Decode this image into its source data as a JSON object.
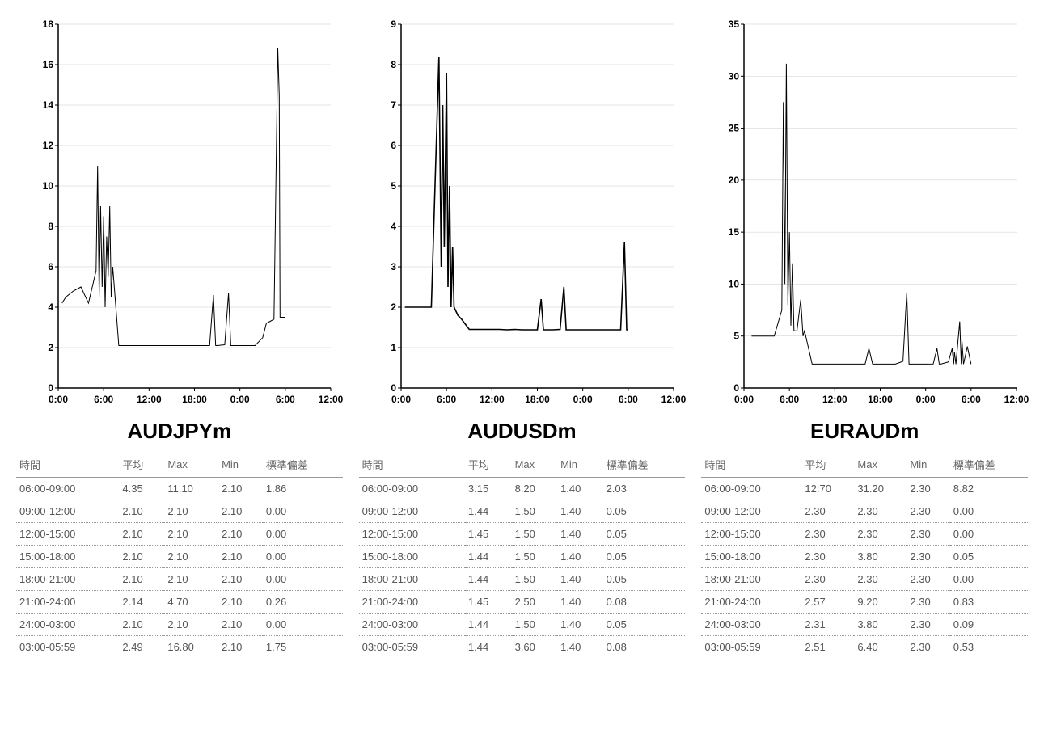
{
  "layout": {
    "background": "#ffffff",
    "text_color": "#000000",
    "muted_text": "#666666",
    "cell_text": "#555555",
    "dotted_border": "#999999"
  },
  "panels": [
    {
      "title": "AUDJPYm",
      "chart": {
        "type": "line",
        "ylim": [
          0,
          18
        ],
        "yticks": [
          0,
          2,
          4,
          6,
          8,
          10,
          12,
          14,
          16,
          18
        ],
        "xticks": [
          "0:00",
          "6:00",
          "12:00",
          "18:00",
          "0:00",
          "6:00",
          "12:00"
        ],
        "xrange": [
          0,
          36
        ],
        "grid_color": "#cccccc",
        "axis_color": "#000000",
        "line_color": "#000000",
        "line_width": 1,
        "tick_fontsize": 12,
        "tick_fontweight": "bold",
        "series": [
          [
            0.5,
            4.2
          ],
          [
            1,
            4.5
          ],
          [
            2,
            4.8
          ],
          [
            3,
            5.0
          ],
          [
            4,
            4.2
          ],
          [
            5,
            5.8
          ],
          [
            5.2,
            11.0
          ],
          [
            5.4,
            4.5
          ],
          [
            5.6,
            9.0
          ],
          [
            5.8,
            5.0
          ],
          [
            6,
            8.5
          ],
          [
            6.2,
            4.0
          ],
          [
            6.4,
            7.5
          ],
          [
            6.6,
            5.5
          ],
          [
            6.8,
            9.0
          ],
          [
            7,
            4.5
          ],
          [
            7.2,
            6.0
          ],
          [
            8,
            2.1
          ],
          [
            9,
            2.1
          ],
          [
            10,
            2.1
          ],
          [
            11,
            2.1
          ],
          [
            12,
            2.1
          ],
          [
            13,
            2.1
          ],
          [
            14,
            2.1
          ],
          [
            15,
            2.1
          ],
          [
            16,
            2.1
          ],
          [
            17,
            2.1
          ],
          [
            18,
            2.1
          ],
          [
            19,
            2.1
          ],
          [
            20,
            2.1
          ],
          [
            20.5,
            4.6
          ],
          [
            20.8,
            2.1
          ],
          [
            21,
            2.1
          ],
          [
            22,
            2.14
          ],
          [
            22.5,
            4.7
          ],
          [
            22.8,
            2.1
          ],
          [
            23,
            2.1
          ],
          [
            24,
            2.1
          ],
          [
            25,
            2.1
          ],
          [
            26,
            2.1
          ],
          [
            27,
            2.49
          ],
          [
            27.5,
            3.2
          ],
          [
            28,
            3.3
          ],
          [
            28.5,
            3.4
          ],
          [
            29,
            16.8
          ],
          [
            29.2,
            14.5
          ],
          [
            29.3,
            3.5
          ],
          [
            30,
            3.5
          ]
        ]
      },
      "table": {
        "columns": [
          "時間",
          "平均",
          "Max",
          "Min",
          "標準偏差"
        ],
        "rows": [
          [
            "06:00-09:00",
            "4.35",
            "11.10",
            "2.10",
            "1.86"
          ],
          [
            "09:00-12:00",
            "2.10",
            "2.10",
            "2.10",
            "0.00"
          ],
          [
            "12:00-15:00",
            "2.10",
            "2.10",
            "2.10",
            "0.00"
          ],
          [
            "15:00-18:00",
            "2.10",
            "2.10",
            "2.10",
            "0.00"
          ],
          [
            "18:00-21:00",
            "2.10",
            "2.10",
            "2.10",
            "0.00"
          ],
          [
            "21:00-24:00",
            "2.14",
            "4.70",
            "2.10",
            "0.26"
          ],
          [
            "24:00-03:00",
            "2.10",
            "2.10",
            "2.10",
            "0.00"
          ],
          [
            "03:00-05:59",
            "2.49",
            "16.80",
            "2.10",
            "1.75"
          ]
        ]
      }
    },
    {
      "title": "AUDUSDm",
      "chart": {
        "type": "line",
        "ylim": [
          0,
          9
        ],
        "yticks": [
          0,
          1,
          2,
          3,
          4,
          5,
          6,
          7,
          8,
          9
        ],
        "xticks": [
          "0:00",
          "6:00",
          "12:00",
          "18:00",
          "0:00",
          "6:00",
          "12:00"
        ],
        "xrange": [
          0,
          36
        ],
        "grid_color": "#cccccc",
        "axis_color": "#000000",
        "line_color": "#000000",
        "line_width": 1.6,
        "tick_fontsize": 12,
        "tick_fontweight": "bold",
        "series": [
          [
            0.5,
            2.0
          ],
          [
            2,
            2.0
          ],
          [
            4,
            2.0
          ],
          [
            5,
            8.2
          ],
          [
            5.3,
            3.0
          ],
          [
            5.5,
            7.0
          ],
          [
            5.7,
            3.5
          ],
          [
            6,
            7.8
          ],
          [
            6.2,
            2.5
          ],
          [
            6.4,
            5.0
          ],
          [
            6.6,
            2.0
          ],
          [
            6.8,
            3.5
          ],
          [
            7,
            2.0
          ],
          [
            7.5,
            1.8
          ],
          [
            8,
            1.7
          ],
          [
            9,
            1.45
          ],
          [
            10,
            1.45
          ],
          [
            11,
            1.45
          ],
          [
            12,
            1.45
          ],
          [
            13,
            1.45
          ],
          [
            14,
            1.44
          ],
          [
            15,
            1.45
          ],
          [
            16,
            1.44
          ],
          [
            17,
            1.44
          ],
          [
            18,
            1.44
          ],
          [
            18.5,
            2.2
          ],
          [
            18.8,
            1.44
          ],
          [
            19,
            1.44
          ],
          [
            20,
            1.44
          ],
          [
            21,
            1.45
          ],
          [
            21.5,
            2.5
          ],
          [
            21.8,
            1.44
          ],
          [
            22,
            1.44
          ],
          [
            23,
            1.44
          ],
          [
            24,
            1.44
          ],
          [
            25,
            1.44
          ],
          [
            26,
            1.44
          ],
          [
            27,
            1.44
          ],
          [
            28,
            1.44
          ],
          [
            29,
            1.44
          ],
          [
            29.5,
            3.6
          ],
          [
            29.8,
            1.44
          ],
          [
            30,
            1.44
          ]
        ]
      },
      "table": {
        "columns": [
          "時間",
          "平均",
          "Max",
          "Min",
          "標準偏差"
        ],
        "rows": [
          [
            "06:00-09:00",
            "3.15",
            "8.20",
            "1.40",
            "2.03"
          ],
          [
            "09:00-12:00",
            "1.44",
            "1.50",
            "1.40",
            "0.05"
          ],
          [
            "12:00-15:00",
            "1.45",
            "1.50",
            "1.40",
            "0.05"
          ],
          [
            "15:00-18:00",
            "1.44",
            "1.50",
            "1.40",
            "0.05"
          ],
          [
            "18:00-21:00",
            "1.44",
            "1.50",
            "1.40",
            "0.05"
          ],
          [
            "21:00-24:00",
            "1.45",
            "2.50",
            "1.40",
            "0.08"
          ],
          [
            "24:00-03:00",
            "1.44",
            "1.50",
            "1.40",
            "0.05"
          ],
          [
            "03:00-05:59",
            "1.44",
            "3.60",
            "1.40",
            "0.08"
          ]
        ]
      }
    },
    {
      "title": "EURAUDm",
      "chart": {
        "type": "line",
        "ylim": [
          0,
          35
        ],
        "yticks": [
          0,
          5,
          10,
          15,
          20,
          25,
          30,
          35
        ],
        "xticks": [
          "0:00",
          "6:00",
          "12:00",
          "18:00",
          "0:00",
          "6:00",
          "12:00"
        ],
        "xrange": [
          0,
          36
        ],
        "grid_color": "#cccccc",
        "axis_color": "#000000",
        "line_color": "#000000",
        "line_width": 1,
        "tick_fontsize": 12,
        "tick_fontweight": "bold",
        "series": [
          [
            1,
            5.0
          ],
          [
            4,
            5.0
          ],
          [
            5,
            7.5
          ],
          [
            5.2,
            27.5
          ],
          [
            5.4,
            10.0
          ],
          [
            5.6,
            31.2
          ],
          [
            5.8,
            8.0
          ],
          [
            6,
            15.0
          ],
          [
            6.2,
            6.0
          ],
          [
            6.4,
            12.0
          ],
          [
            6.6,
            5.5
          ],
          [
            7,
            5.5
          ],
          [
            7.5,
            8.5
          ],
          [
            7.8,
            5.0
          ],
          [
            8,
            5.5
          ],
          [
            9,
            2.3
          ],
          [
            10,
            2.3
          ],
          [
            11,
            2.3
          ],
          [
            12,
            2.3
          ],
          [
            13,
            2.3
          ],
          [
            14,
            2.3
          ],
          [
            15,
            2.3
          ],
          [
            16,
            2.3
          ],
          [
            16.5,
            3.8
          ],
          [
            17,
            2.3
          ],
          [
            18,
            2.3
          ],
          [
            19,
            2.3
          ],
          [
            20,
            2.3
          ],
          [
            21,
            2.57
          ],
          [
            21.5,
            9.2
          ],
          [
            21.8,
            2.3
          ],
          [
            22,
            2.3
          ],
          [
            23,
            2.3
          ],
          [
            24,
            2.3
          ],
          [
            25,
            2.31
          ],
          [
            25.5,
            3.8
          ],
          [
            25.8,
            2.3
          ],
          [
            26,
            2.3
          ],
          [
            27,
            2.51
          ],
          [
            27.5,
            3.8
          ],
          [
            27.7,
            2.3
          ],
          [
            27.8,
            3.5
          ],
          [
            28,
            2.3
          ],
          [
            28.5,
            6.4
          ],
          [
            28.7,
            2.3
          ],
          [
            28.8,
            4.5
          ],
          [
            29,
            2.3
          ],
          [
            29.5,
            4.0
          ],
          [
            30,
            2.3
          ]
        ]
      },
      "table": {
        "columns": [
          "時間",
          "平均",
          "Max",
          "Min",
          "標準偏差"
        ],
        "rows": [
          [
            "06:00-09:00",
            "12.70",
            "31.20",
            "2.30",
            "8.82"
          ],
          [
            "09:00-12:00",
            "2.30",
            "2.30",
            "2.30",
            "0.00"
          ],
          [
            "12:00-15:00",
            "2.30",
            "2.30",
            "2.30",
            "0.00"
          ],
          [
            "15:00-18:00",
            "2.30",
            "3.80",
            "2.30",
            "0.05"
          ],
          [
            "18:00-21:00",
            "2.30",
            "2.30",
            "2.30",
            "0.00"
          ],
          [
            "21:00-24:00",
            "2.57",
            "9.20",
            "2.30",
            "0.83"
          ],
          [
            "24:00-03:00",
            "2.31",
            "3.80",
            "2.30",
            "0.09"
          ],
          [
            "03:00-05:59",
            "2.51",
            "6.40",
            "2.30",
            "0.53"
          ]
        ]
      }
    }
  ]
}
